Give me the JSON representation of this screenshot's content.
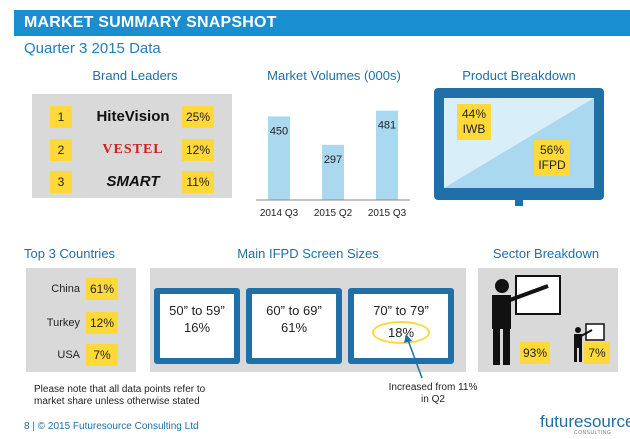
{
  "header": {
    "title": "MARKET SUMMARY SNAPSHOT",
    "subtitle": "Quarter 3 2015 Data"
  },
  "brand_leaders": {
    "title": "Brand Leaders",
    "rows": [
      {
        "rank": "1",
        "brand": "HiteVision",
        "share": "25%"
      },
      {
        "rank": "2",
        "brand": "VESTEL",
        "share": "12%"
      },
      {
        "rank": "3",
        "brand": "SMART",
        "share": "11%"
      }
    ]
  },
  "chart_data": {
    "type": "bar",
    "title": "Market Volumes (000s)",
    "categories": [
      "2014 Q3",
      "2015 Q2",
      "2015 Q3"
    ],
    "values": [
      450,
      297,
      481
    ],
    "ylim": [
      0,
      560
    ],
    "grid": false,
    "colors": [
      "#a9d8ef"
    ]
  },
  "product_breakdown": {
    "title": "Product Breakdown",
    "iwb": {
      "percent": "44%",
      "label": "IWB"
    },
    "ifpd": {
      "percent": "56%",
      "label": "IFPD"
    }
  },
  "countries": {
    "title": "Top 3 Countries",
    "rows": [
      {
        "name": "China",
        "share": "61%"
      },
      {
        "name": "Turkey",
        "share": "12%"
      },
      {
        "name": "USA",
        "share": "7%"
      }
    ]
  },
  "screen_sizes": {
    "title": "Main IFPD Screen Sizes",
    "items": [
      {
        "range": "50” to 59”",
        "share": "16%"
      },
      {
        "range": "60” to 69”",
        "share": "61%"
      },
      {
        "range": "70” to 79”",
        "share": "18%"
      }
    ],
    "callout": "Increased from 11% in Q2"
  },
  "sector": {
    "title": "Sector Breakdown",
    "large_share": "93%",
    "small_share": "7%"
  },
  "note": "Please note that all data points refer to market share unless otherwise stated",
  "footer": {
    "page": "8",
    "copyright": "© 2015 Futuresource Consulting Ltd",
    "logo": "futuresource",
    "logo_sub": "CONSULTING"
  },
  "colors": {
    "accent": "#1a8fd0",
    "dark_blue": "#1f6fa8",
    "highlight": "#ffd83a",
    "bar": "#a9d8ef",
    "panel": "#d9d9d9"
  }
}
